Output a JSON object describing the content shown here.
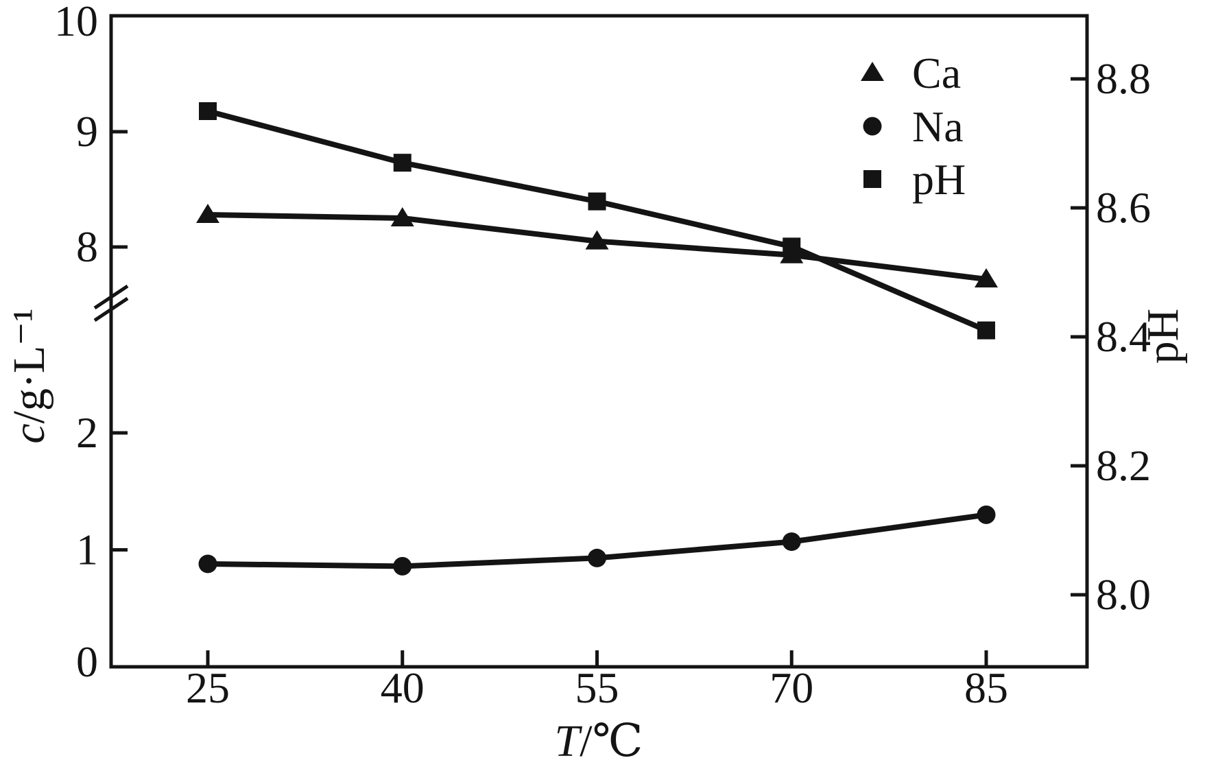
{
  "colors": {
    "ink": "#141414",
    "background": "#ffffff"
  },
  "x_axis": {
    "label_parts": [
      {
        "text": "T",
        "italic": true
      },
      {
        "text": "/℃",
        "italic": false
      }
    ],
    "ticks": [
      {
        "v": 25,
        "label": "25"
      },
      {
        "v": 40,
        "label": "40"
      },
      {
        "v": 55,
        "label": "55"
      },
      {
        "v": 70,
        "label": "70"
      },
      {
        "v": 85,
        "label": "85"
      }
    ]
  },
  "left_axis": {
    "label_parts": [
      {
        "text": "c",
        "italic": true
      },
      {
        "text": "/g·L⁻¹",
        "italic": false
      }
    ],
    "broken": true,
    "ticks": [
      {
        "v": 0,
        "label": "0",
        "segment": "lower",
        "tick_mark": false
      },
      {
        "v": 1,
        "label": "1",
        "segment": "lower",
        "tick_mark": true
      },
      {
        "v": 2,
        "label": "2",
        "segment": "lower",
        "tick_mark": true
      },
      {
        "v": 8,
        "label": "8",
        "segment": "upper",
        "tick_mark": true
      },
      {
        "v": 9,
        "label": "9",
        "segment": "upper",
        "tick_mark": true
      },
      {
        "v": 10,
        "label": "10",
        "segment": "upper",
        "tick_mark": false
      }
    ]
  },
  "right_axis": {
    "label_parts": [
      {
        "text": "pH",
        "italic": false
      }
    ],
    "ticks": [
      {
        "v": 8.0,
        "label": "8.0"
      },
      {
        "v": 8.2,
        "label": "8.2"
      },
      {
        "v": 8.4,
        "label": "8.4"
      },
      {
        "v": 8.6,
        "label": "8.6"
      },
      {
        "v": 8.8,
        "label": "8.8"
      }
    ]
  },
  "legend": {
    "items": [
      {
        "marker": "triangle",
        "label": "Ca"
      },
      {
        "marker": "circle",
        "label": "Na"
      },
      {
        "marker": "square",
        "label": "pH"
      }
    ]
  },
  "chart_data": {
    "type": "line",
    "x": [
      25,
      40,
      55,
      70,
      85
    ],
    "xlabel": "T/℃",
    "ylabel_left": "c/g·L⁻¹",
    "ylabel_right": "pH",
    "x_range": [
      17.5,
      92.8
    ],
    "left_axis_lower_range": [
      0,
      2.6
    ],
    "left_axis_upper_range": [
      7.55,
      10
    ],
    "right_range": [
      7.97,
      8.92
    ],
    "grid": false,
    "legend_position": "top-right-inside",
    "series": [
      {
        "name": "Ca",
        "marker": "triangle",
        "axis": "left-upper",
        "values": [
          8.28,
          8.25,
          8.05,
          7.93,
          7.72
        ]
      },
      {
        "name": "Na",
        "marker": "circle",
        "axis": "left-lower",
        "values": [
          0.88,
          0.86,
          0.93,
          1.07,
          1.3
        ]
      },
      {
        "name": "pH",
        "marker": "square",
        "axis": "right",
        "values": [
          8.75,
          8.67,
          8.61,
          8.54,
          8.41
        ]
      }
    ]
  }
}
